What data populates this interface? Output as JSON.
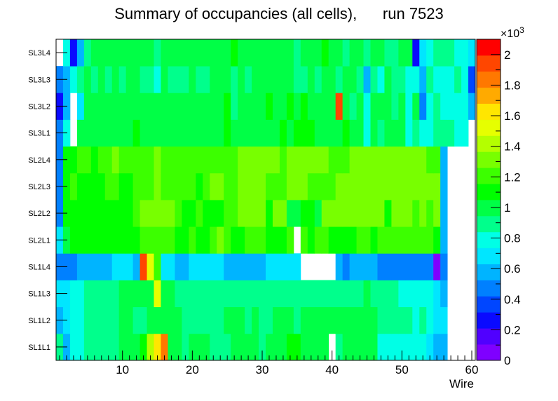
{
  "chart_data": {
    "type": "heatmap",
    "title": "Summary of occupancies (all cells),      run 7523",
    "xlabel": "Wire",
    "ylabel": "",
    "xlim": [
      0.5,
      60.5
    ],
    "x_ticks": [
      10,
      20,
      30,
      40,
      50,
      60
    ],
    "layers": [
      "SL1L1",
      "SL1L2",
      "SL1L3",
      "SL1L4",
      "SL2L1",
      "SL2L2",
      "SL2L3",
      "SL2L4",
      "SL3L1",
      "SL3L2",
      "SL3L3",
      "SL3L4"
    ],
    "z_unit_label": "×10",
    "z_unit_exponent": "3",
    "z_range": [
      0,
      2.1
    ],
    "z_ticks": [
      "0",
      "0.2",
      "0.4",
      "0.6",
      "0.8",
      "1",
      "1.2",
      "1.4",
      "1.6",
      "1.8",
      "2"
    ],
    "palette": [
      "#7f00ff",
      "#5000ff",
      "#0a0aff",
      "#0046ff",
      "#0080ff",
      "#00b4ff",
      "#00e6ff",
      "#00ffe6",
      "#00ff8c",
      "#00ff46",
      "#00ff00",
      "#3cff00",
      "#78ff00",
      "#b4ff00",
      "#e6ff00",
      "#ffe600",
      "#ffaa00",
      "#ff7800",
      "#ff4600",
      "#ff0000"
    ],
    "values": [
      [
        0.9,
        0.6,
        0.8,
        0.8,
        0.85,
        0.9,
        0.9,
        0.9,
        0.9,
        0.95,
        0.95,
        1.0,
        1.1,
        1.45,
        1.6,
        1.85,
        1.0,
        1.0,
        0.9,
        0.95,
        1.0,
        0.95,
        0.9,
        0.85,
        0.9,
        1.0,
        1.0,
        1.0,
        0.95,
        0.9,
        1.0,
        1.0,
        1.0,
        1.05,
        1.05,
        0.95,
        1.0,
        0.95,
        1.0,
        null,
        0.9,
        0.95,
        1.0,
        1.0,
        0.95,
        1.0,
        0.8,
        0.8,
        0.8,
        0.8,
        0.8,
        0.8,
        0.75,
        0.7,
        0.6,
        0.6,
        null,
        null,
        null,
        null
      ],
      [
        0.6,
        0.65,
        0.75,
        0.75,
        0.85,
        0.85,
        0.85,
        0.85,
        0.9,
        0.95,
        0.95,
        0.9,
        0.9,
        0.95,
        0.95,
        0.95,
        0.95,
        0.95,
        0.9,
        0.9,
        0.9,
        0.9,
        0.9,
        0.9,
        0.95,
        0.95,
        0.95,
        0.9,
        0.95,
        0.9,
        0.9,
        0.95,
        0.95,
        1.0,
        0.9,
        0.95,
        0.95,
        0.95,
        0.95,
        0.95,
        0.95,
        0.95,
        0.95,
        0.95,
        0.95,
        0.95,
        0.9,
        0.9,
        0.85,
        0.85,
        0.85,
        0.8,
        0.85,
        0.75,
        0.7,
        0.65,
        null,
        null,
        null,
        null
      ],
      [
        0.65,
        0.7,
        0.75,
        0.75,
        0.85,
        0.85,
        0.85,
        0.85,
        0.9,
        0.95,
        0.95,
        0.95,
        0.95,
        0.95,
        1.5,
        0.95,
        0.95,
        0.9,
        0.9,
        0.9,
        0.9,
        0.9,
        0.9,
        0.9,
        0.9,
        0.9,
        0.9,
        0.9,
        0.9,
        0.9,
        0.9,
        0.9,
        0.9,
        0.9,
        0.9,
        0.9,
        0.9,
        0.9,
        0.9,
        0.9,
        0.9,
        0.9,
        0.9,
        0.9,
        0.95,
        0.9,
        0.9,
        0.85,
        0.85,
        0.8,
        0.8,
        0.8,
        0.8,
        0.75,
        0.7,
        0.6,
        null,
        null,
        null,
        null
      ],
      [
        0.45,
        0.45,
        0.45,
        0.55,
        0.55,
        0.55,
        0.55,
        0.6,
        0.65,
        0.65,
        0.65,
        0.6,
        1.9,
        1.55,
        1.25,
        0.65,
        0.65,
        0.6,
        0.6,
        0.65,
        0.7,
        0.7,
        0.65,
        0.65,
        0.6,
        0.6,
        0.6,
        0.6,
        0.6,
        0.6,
        0.65,
        0.65,
        0.65,
        0.7,
        0.7,
        null,
        null,
        null,
        null,
        null,
        0.55,
        0.5,
        0.55,
        0.55,
        0.55,
        0.55,
        0.45,
        0.45,
        0.45,
        0.45,
        0.45,
        0.45,
        0.45,
        0.45,
        0.1,
        0.5,
        null,
        null,
        null,
        null
      ],
      [
        0.7,
        0.95,
        1.1,
        1.1,
        1.05,
        1.1,
        1.1,
        1.1,
        1.15,
        1.1,
        1.15,
        1.15,
        1.25,
        1.25,
        1.25,
        1.25,
        1.25,
        1.15,
        1.15,
        1.2,
        1.15,
        1.15,
        1.25,
        1.3,
        1.2,
        1.15,
        1.15,
        1.2,
        1.25,
        1.25,
        1.15,
        1.15,
        1.15,
        1.2,
        null,
        1.2,
        1.15,
        1.2,
        1.2,
        1.15,
        1.1,
        1.1,
        1.15,
        1.2,
        1.2,
        1.15,
        1.2,
        1.25,
        1.25,
        1.2,
        1.2,
        1.2,
        1.2,
        1.2,
        1.1,
        0.55,
        null,
        null,
        null,
        null
      ],
      [
        0.45,
        1.1,
        1.1,
        1.1,
        1.1,
        1.15,
        1.15,
        1.1,
        1.1,
        1.15,
        1.1,
        1.2,
        1.3,
        1.3,
        1.3,
        1.3,
        1.3,
        1.2,
        1.15,
        1.15,
        1.2,
        1.15,
        1.1,
        1.15,
        1.2,
        1.2,
        1.3,
        1.3,
        1.3,
        1.3,
        1.15,
        1.3,
        1.3,
        1.0,
        1.0,
        1.1,
        1.15,
        1.0,
        1.3,
        1.3,
        1.3,
        1.3,
        1.3,
        1.3,
        1.3,
        1.3,
        1.3,
        1.1,
        1.3,
        1.3,
        1.3,
        1.2,
        1.3,
        1.2,
        1.3,
        0.6,
        null,
        null,
        null,
        null
      ],
      [
        0.5,
        1.15,
        1.2,
        1.15,
        1.1,
        1.15,
        1.15,
        1.2,
        1.2,
        1.15,
        1.15,
        1.25,
        1.2,
        1.25,
        1.3,
        1.25,
        1.25,
        1.2,
        1.2,
        1.2,
        1.15,
        1.2,
        1.3,
        1.3,
        1.25,
        1.2,
        1.3,
        1.3,
        1.3,
        1.3,
        1.2,
        1.2,
        1.2,
        1.3,
        1.3,
        1.3,
        1.2,
        1.25,
        1.2,
        1.25,
        1.3,
        1.3,
        1.3,
        1.3,
        1.3,
        1.3,
        1.3,
        1.3,
        1.3,
        1.3,
        1.3,
        1.3,
        1.3,
        1.3,
        1.3,
        0.6,
        null,
        null,
        null,
        null
      ],
      [
        0.45,
        1.1,
        1.15,
        1.2,
        1.2,
        1.15,
        1.2,
        1.2,
        1.3,
        1.2,
        1.25,
        1.25,
        1.2,
        1.25,
        1.3,
        1.2,
        1.25,
        1.2,
        1.2,
        1.25,
        1.2,
        1.2,
        1.2,
        1.25,
        1.25,
        1.2,
        1.3,
        1.3,
        1.3,
        1.3,
        1.3,
        1.3,
        1.2,
        1.3,
        1.3,
        1.3,
        1.3,
        1.3,
        1.3,
        1.25,
        1.2,
        1.25,
        1.3,
        1.3,
        1.3,
        1.3,
        1.3,
        1.3,
        1.3,
        1.3,
        1.3,
        1.3,
        1.3,
        1.2,
        1.25,
        0.6,
        null,
        null,
        null,
        null
      ],
      [
        0.45,
        0.8,
        null,
        1.0,
        0.95,
        0.95,
        1.0,
        1.0,
        0.95,
        1.0,
        1.0,
        1.05,
        1.0,
        0.95,
        1.0,
        1.0,
        1.0,
        1.0,
        1.0,
        1.0,
        0.95,
        0.95,
        0.95,
        1.0,
        1.05,
        1.0,
        1.0,
        1.0,
        0.95,
        1.0,
        0.95,
        1.0,
        1.05,
        1.0,
        1.05,
        1.05,
        1.05,
        1.0,
        0.95,
        1.0,
        1.0,
        1.05,
        1.0,
        1.0,
        0.75,
        0.95,
        0.9,
        1.0,
        1.0,
        0.95,
        0.75,
        0.9,
        0.8,
        0.8,
        0.85,
        0.85,
        0.85,
        0.8,
        0.8,
        null
      ],
      [
        0.25,
        0.55,
        null,
        0.65,
        1.0,
        1.0,
        0.95,
        1.0,
        1.0,
        1.0,
        1.0,
        1.0,
        1.0,
        1.0,
        1.0,
        0.95,
        1.0,
        1.0,
        1.0,
        1.0,
        1.0,
        1.0,
        1.0,
        0.95,
        1.05,
        0.85,
        1.0,
        1.0,
        1.0,
        1.0,
        1.05,
        1.0,
        1.0,
        1.05,
        1.0,
        1.05,
        1.0,
        1.0,
        1.0,
        1.0,
        1.95,
        1.0,
        0.85,
        1.0,
        0.8,
        1.0,
        1.0,
        1.0,
        0.9,
        0.95,
        0.8,
        1.0,
        0.45,
        0.8,
        0.85,
        0.8,
        0.8,
        0.8,
        0.8,
        0.55
      ],
      [
        0.45,
        0.55,
        0.8,
        0.85,
        0.95,
        0.9,
        0.95,
        0.9,
        0.95,
        0.9,
        0.95,
        0.95,
        0.9,
        0.85,
        0.8,
        1.0,
        0.9,
        0.9,
        0.9,
        0.95,
        0.9,
        0.9,
        0.95,
        0.95,
        0.95,
        0.9,
        0.95,
        0.9,
        1.0,
        0.95,
        1.0,
        0.95,
        0.95,
        0.95,
        0.9,
        0.9,
        0.95,
        0.9,
        0.95,
        0.95,
        0.9,
        0.95,
        0.95,
        0.85,
        0.6,
        0.9,
        0.8,
        0.95,
        0.9,
        0.9,
        0.8,
        0.8,
        0.55,
        0.85,
        0.8,
        0.8,
        0.8,
        0.85,
        0.8,
        0.35
      ],
      [
        null,
        0.75,
        0.25,
        0.55,
        0.9,
        0.95,
        0.95,
        0.95,
        1.0,
        1.0,
        1.0,
        1.0,
        0.95,
        1.0,
        0.9,
        0.95,
        0.95,
        0.95,
        0.95,
        1.0,
        1.0,
        1.0,
        0.95,
        0.95,
        0.95,
        1.05,
        1.0,
        1.0,
        1.0,
        1.0,
        0.95,
        1.0,
        0.95,
        1.0,
        0.9,
        1.0,
        0.95,
        1.0,
        1.05,
        1.0,
        1.0,
        0.9,
        0.95,
        1.0,
        0.9,
        1.0,
        0.95,
        0.9,
        0.9,
        0.95,
        0.95,
        0.25,
        0.7,
        0.8,
        0.85,
        0.85,
        0.85,
        0.8,
        0.8,
        0.7
      ]
    ]
  }
}
